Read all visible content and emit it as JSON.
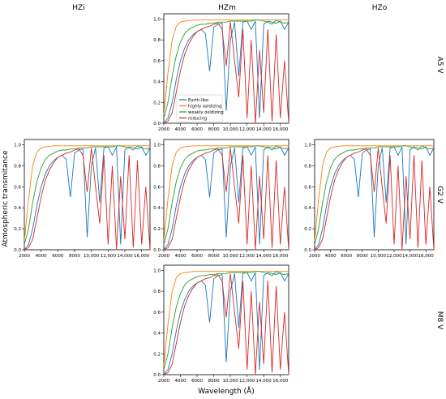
{
  "figure": {
    "column_titles": [
      "HZi",
      "HZm",
      "HZo"
    ],
    "row_titles": [
      "A5 V",
      "G2 V",
      "M8 V"
    ],
    "ylabel": "Atmospheric transmitance",
    "xlabel": "Wavelength (Å)"
  },
  "colors": {
    "Earth-like": "#1f77b4",
    "highly oxidizing": "#ff7f0e",
    "weakly oxidizing": "#2ca02c",
    "reducing": "#d62728"
  },
  "chart_data": {
    "type": "line",
    "layout": "grid of 3 columns (HZi, HZm, HZo) x 3 rows (A5 V, G2 V, M8 V); 5 of 9 panels shown",
    "xlim": [
      2000,
      17000
    ],
    "ylim": [
      0.0,
      1.05
    ],
    "x_ticks": [
      2000,
      4000,
      6000,
      8000,
      10000,
      12000,
      14000,
      16000
    ],
    "x_tick_labels": [
      "2000",
      "4000",
      "6000",
      "8000",
      "10,000",
      "12,000",
      "14,000",
      "16,000"
    ],
    "y_ticks": [
      0.0,
      0.2,
      0.4,
      0.6,
      0.8,
      1.0
    ],
    "y_tick_labels": [
      "0.0",
      "0.2",
      "0.4",
      "0.6",
      "0.8",
      "1.0"
    ],
    "legend": {
      "location": "center-left of HZm / A5 V panel",
      "entries": [
        "Earth-like",
        "highly oxidizing",
        "weakly oxidizing",
        "reducing"
      ]
    },
    "x": [
      2000,
      2500,
      3000,
      3500,
      4000,
      4500,
      5000,
      5500,
      6000,
      6500,
      7000,
      7500,
      8000,
      8500,
      9000,
      9500,
      10000,
      10500,
      11000,
      11500,
      12000,
      12500,
      13000,
      13500,
      14000,
      14500,
      15000,
      15500,
      16000,
      16500,
      17000
    ],
    "series": [
      {
        "name": "Earth-like",
        "color": "#1f77b4",
        "y": [
          0.0,
          0.05,
          0.2,
          0.42,
          0.6,
          0.72,
          0.8,
          0.85,
          0.88,
          0.9,
          0.86,
          0.5,
          0.92,
          0.95,
          0.96,
          0.12,
          0.8,
          0.97,
          0.45,
          0.97,
          0.98,
          0.9,
          0.98,
          0.05,
          0.95,
          0.98,
          0.97,
          0.96,
          0.98,
          0.9,
          0.97
        ]
      },
      {
        "name": "highly oxidizing",
        "color": "#ff7f0e",
        "y": [
          0.08,
          0.48,
          0.8,
          0.93,
          0.97,
          0.98,
          0.985,
          0.99,
          0.99,
          0.99,
          0.99,
          0.99,
          0.99,
          0.99,
          0.99,
          0.99,
          0.99,
          0.99,
          0.99,
          0.99,
          0.99,
          0.99,
          0.99,
          0.99,
          0.99,
          0.99,
          0.99,
          0.99,
          0.99,
          0.99,
          0.99
        ]
      },
      {
        "name": "weakly oxidizing",
        "color": "#2ca02c",
        "y": [
          0.05,
          0.2,
          0.45,
          0.65,
          0.78,
          0.86,
          0.9,
          0.92,
          0.94,
          0.95,
          0.95,
          0.96,
          0.96,
          0.97,
          0.97,
          0.97,
          0.98,
          0.98,
          0.98,
          0.98,
          0.98,
          0.98,
          0.99,
          0.99,
          0.98,
          0.97,
          0.95,
          0.99,
          0.97,
          0.96,
          0.97
        ]
      },
      {
        "name": "reducing",
        "color": "#d62728",
        "y": [
          0.0,
          0.02,
          0.1,
          0.3,
          0.5,
          0.66,
          0.76,
          0.83,
          0.88,
          0.9,
          0.92,
          0.93,
          0.95,
          0.96,
          0.9,
          0.55,
          0.97,
          0.6,
          0.25,
          0.9,
          0.05,
          0.8,
          0.0,
          0.7,
          0.1,
          0.9,
          0.02,
          0.85,
          0.05,
          0.6,
          0.0
        ]
      }
    ]
  }
}
